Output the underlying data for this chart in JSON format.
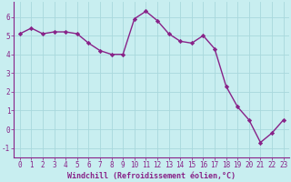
{
  "x": [
    0,
    1,
    2,
    3,
    4,
    5,
    6,
    7,
    8,
    9,
    10,
    11,
    12,
    13,
    14,
    15,
    16,
    17,
    18,
    19,
    20,
    21,
    22,
    23
  ],
  "y": [
    5.1,
    5.4,
    5.1,
    5.2,
    5.2,
    5.1,
    4.6,
    4.2,
    4.0,
    4.0,
    5.9,
    6.3,
    5.8,
    5.1,
    4.7,
    4.6,
    5.0,
    4.3,
    2.3,
    1.2,
    0.5,
    -0.7,
    -0.2,
    0.5
  ],
  "line_color": "#882288",
  "marker": "D",
  "marker_size": 2.2,
  "bg_color": "#c8eef0",
  "grid_color": "#a8d8dc",
  "xlabel": "Windchill (Refroidissement éolien,°C)",
  "ylabel": "",
  "title": "",
  "xlim": [
    -0.5,
    23.5
  ],
  "ylim": [
    -1.5,
    6.8
  ],
  "yticks": [
    -1,
    0,
    1,
    2,
    3,
    4,
    5,
    6
  ],
  "xticks": [
    0,
    1,
    2,
    3,
    4,
    5,
    6,
    7,
    8,
    9,
    10,
    11,
    12,
    13,
    14,
    15,
    16,
    17,
    18,
    19,
    20,
    21,
    22,
    23
  ],
  "tick_fontsize": 5.5,
  "xlabel_fontsize": 6.0,
  "linewidth": 1.0
}
